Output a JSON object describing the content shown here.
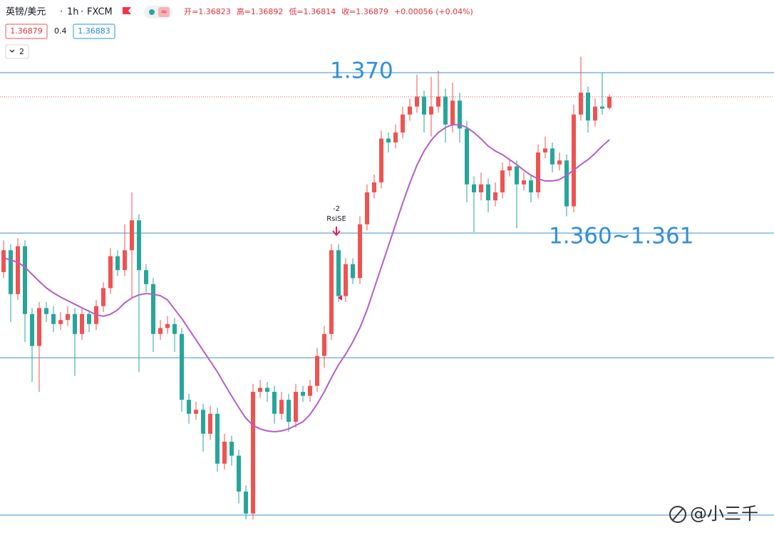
{
  "chart_data": {
    "type": "candlestick",
    "symbol": "英镑/美元",
    "interval": "1h",
    "source": "FXCM",
    "legend_values": [
      "开=1.36823",
      "高=1.36892",
      "低=1.36814",
      "收=1.36879",
      "+0.00056 (+0.04%)"
    ],
    "bid": 1.36879,
    "spread": 0.4,
    "ask": 1.36883,
    "indicator_count": 2,
    "ylim": [
      1.3465,
      1.3715
    ],
    "up_color": "#ef5350",
    "down_color": "#26a69a",
    "hline_color": "#3d8fd1",
    "hlines": [
      1.37,
      1.36196,
      1.35571,
      1.34782
    ],
    "annotations": [
      {
        "text": "1.370",
        "value": 1.37
      },
      {
        "text": "1.360~1.361",
        "value": 1.36196
      }
    ],
    "signal": {
      "value": -2,
      "label": "RsiSE"
    },
    "watermark": "@小三千",
    "ohlc": [
      [
        1.36,
        1.3616,
        1.3597,
        1.3611
      ],
      [
        1.3611,
        1.3614,
        1.3575,
        1.3589
      ],
      [
        1.3589,
        1.3617,
        1.3586,
        1.3613
      ],
      [
        1.3613,
        1.3616,
        1.3565,
        1.3579
      ],
      [
        1.3579,
        1.3582,
        1.3545,
        1.3563
      ],
      [
        1.3563,
        1.3585,
        1.354,
        1.3582
      ],
      [
        1.3582,
        1.3585,
        1.3575,
        1.3579
      ],
      [
        1.3579,
        1.3583,
        1.357,
        1.3574
      ],
      [
        1.3574,
        1.358,
        1.3571,
        1.3576
      ],
      [
        1.3576,
        1.3583,
        1.3573,
        1.3579
      ],
      [
        1.3579,
        1.3582,
        1.3548,
        1.3569
      ],
      [
        1.3569,
        1.3582,
        1.3566,
        1.3579
      ],
      [
        1.3579,
        1.3581,
        1.357,
        1.3574
      ],
      [
        1.3574,
        1.3586,
        1.3571,
        1.3583
      ],
      [
        1.3583,
        1.3595,
        1.358,
        1.3592
      ],
      [
        1.3592,
        1.3612,
        1.3589,
        1.3608
      ],
      [
        1.3608,
        1.3611,
        1.3598,
        1.3601
      ],
      [
        1.3601,
        1.3624,
        1.3598,
        1.3611
      ],
      [
        1.3611,
        1.364,
        1.3587,
        1.3626
      ],
      [
        1.3626,
        1.3629,
        1.355,
        1.3601
      ],
      [
        1.3601,
        1.3604,
        1.359,
        1.3594
      ],
      [
        1.3594,
        1.3597,
        1.356,
        1.3569
      ],
      [
        1.3569,
        1.3576,
        1.3566,
        1.3572
      ],
      [
        1.3572,
        1.3578,
        1.3569,
        1.3574
      ],
      [
        1.3574,
        1.3577,
        1.356,
        1.3569
      ],
      [
        1.3569,
        1.3572,
        1.353,
        1.3536
      ],
      [
        1.3536,
        1.3539,
        1.3524,
        1.3529
      ],
      [
        1.3529,
        1.3535,
        1.3526,
        1.3531
      ],
      [
        1.3531,
        1.3534,
        1.351,
        1.3519
      ],
      [
        1.3519,
        1.3533,
        1.3516,
        1.3529
      ],
      [
        1.3529,
        1.3532,
        1.35,
        1.3504
      ],
      [
        1.3504,
        1.3519,
        1.3501,
        1.3515
      ],
      [
        1.3515,
        1.3518,
        1.3503,
        1.3508
      ],
      [
        1.3508,
        1.3511,
        1.3484,
        1.349
      ],
      [
        1.349,
        1.3493,
        1.3476,
        1.3479
      ],
      [
        1.3479,
        1.3544,
        1.3476,
        1.354
      ],
      [
        1.354,
        1.3546,
        1.3537,
        1.3542
      ],
      [
        1.3542,
        1.3545,
        1.3535,
        1.354
      ],
      [
        1.354,
        1.3543,
        1.3524,
        1.3529
      ],
      [
        1.3529,
        1.354,
        1.3526,
        1.3536
      ],
      [
        1.3536,
        1.3539,
        1.352,
        1.3525
      ],
      [
        1.3525,
        1.3544,
        1.3522,
        1.354
      ],
      [
        1.354,
        1.3543,
        1.3535,
        1.3538
      ],
      [
        1.3538,
        1.3546,
        1.3535,
        1.3543
      ],
      [
        1.3543,
        1.3562,
        1.354,
        1.3558
      ],
      [
        1.3558,
        1.3573,
        1.3552,
        1.3569
      ],
      [
        1.3569,
        1.3614,
        1.3566,
        1.3611
      ],
      [
        1.3611,
        1.3614,
        1.3585,
        1.3588
      ],
      [
        1.3588,
        1.3607,
        1.3585,
        1.3604
      ],
      [
        1.3604,
        1.3607,
        1.3594,
        1.3597
      ],
      [
        1.3597,
        1.3628,
        1.3594,
        1.3624
      ],
      [
        1.3624,
        1.3644,
        1.3621,
        1.364
      ],
      [
        1.364,
        1.3649,
        1.3637,
        1.3645
      ],
      [
        1.3645,
        1.3671,
        1.3642,
        1.3667
      ],
      [
        1.3667,
        1.367,
        1.366,
        1.3665
      ],
      [
        1.3665,
        1.3674,
        1.3662,
        1.367
      ],
      [
        1.367,
        1.3683,
        1.3667,
        1.3679
      ],
      [
        1.3679,
        1.3687,
        1.3676,
        1.3683
      ],
      [
        1.3683,
        1.3699,
        1.368,
        1.3688
      ],
      [
        1.3688,
        1.3691,
        1.367,
        1.3679
      ],
      [
        1.3679,
        1.3698,
        1.3668,
        1.3683
      ],
      [
        1.3683,
        1.3701,
        1.368,
        1.3688
      ],
      [
        1.3688,
        1.3692,
        1.3665,
        1.3674
      ],
      [
        1.3674,
        1.3695,
        1.367,
        1.3686
      ],
      [
        1.3686,
        1.369,
        1.3665,
        1.3672
      ],
      [
        1.3672,
        1.3676,
        1.3635,
        1.3644
      ],
      [
        1.3644,
        1.3648,
        1.362,
        1.364
      ],
      [
        1.364,
        1.365,
        1.3636,
        1.3644
      ],
      [
        1.3644,
        1.3647,
        1.363,
        1.3636
      ],
      [
        1.3636,
        1.3645,
        1.3633,
        1.364
      ],
      [
        1.364,
        1.3655,
        1.3637,
        1.3651
      ],
      [
        1.3651,
        1.3657,
        1.3648,
        1.3653
      ],
      [
        1.3653,
        1.3656,
        1.3622,
        1.3644
      ],
      [
        1.3644,
        1.365,
        1.3641,
        1.3646
      ],
      [
        1.3646,
        1.3649,
        1.3635,
        1.364
      ],
      [
        1.364,
        1.3664,
        1.3637,
        1.366
      ],
      [
        1.366,
        1.3668,
        1.3657,
        1.3662
      ],
      [
        1.3662,
        1.3665,
        1.365,
        1.3654
      ],
      [
        1.3654,
        1.366,
        1.3651,
        1.3656
      ],
      [
        1.3656,
        1.3659,
        1.3628,
        1.3633
      ],
      [
        1.3633,
        1.3684,
        1.363,
        1.3679
      ],
      [
        1.3679,
        1.3708,
        1.3676,
        1.369
      ],
      [
        1.369,
        1.3693,
        1.367,
        1.3676
      ],
      [
        1.3676,
        1.3687,
        1.3673,
        1.3683
      ],
      [
        1.3683,
        1.37,
        1.3679,
        1.3682
      ],
      [
        1.36823,
        1.36892,
        1.36814,
        1.36879
      ]
    ],
    "ma": {
      "color": "#b45ec8",
      "values": [
        1.36071,
        1.36061,
        1.3605,
        1.36025,
        1.35989,
        1.35954,
        1.35921,
        1.35896,
        1.35875,
        1.35857,
        1.35839,
        1.35821,
        1.35804,
        1.35786,
        1.35779,
        1.35789,
        1.35811,
        1.35846,
        1.35871,
        1.35886,
        1.35893,
        1.35889,
        1.35882,
        1.35861,
        1.35814,
        1.35768,
        1.35714,
        1.35661,
        1.35607,
        1.35554,
        1.355,
        1.35439,
        1.35379,
        1.35321,
        1.35268,
        1.35232,
        1.35214,
        1.35204,
        1.352,
        1.35204,
        1.35214,
        1.35232,
        1.3525,
        1.35286,
        1.35339,
        1.354,
        1.35471,
        1.35536,
        1.35589,
        1.3565,
        1.35721,
        1.35811,
        1.35918,
        1.36025,
        1.36132,
        1.36239,
        1.36346,
        1.36446,
        1.36536,
        1.36607,
        1.36661,
        1.367,
        1.36725,
        1.36739,
        1.36739,
        1.36725,
        1.367,
        1.36668,
        1.36632,
        1.36607,
        1.36589,
        1.36564,
        1.36539,
        1.36511,
        1.36486,
        1.36468,
        1.36457,
        1.36457,
        1.36464,
        1.36486,
        1.36511,
        1.36539,
        1.36564,
        1.36596,
        1.36632,
        1.36664
      ]
    }
  }
}
